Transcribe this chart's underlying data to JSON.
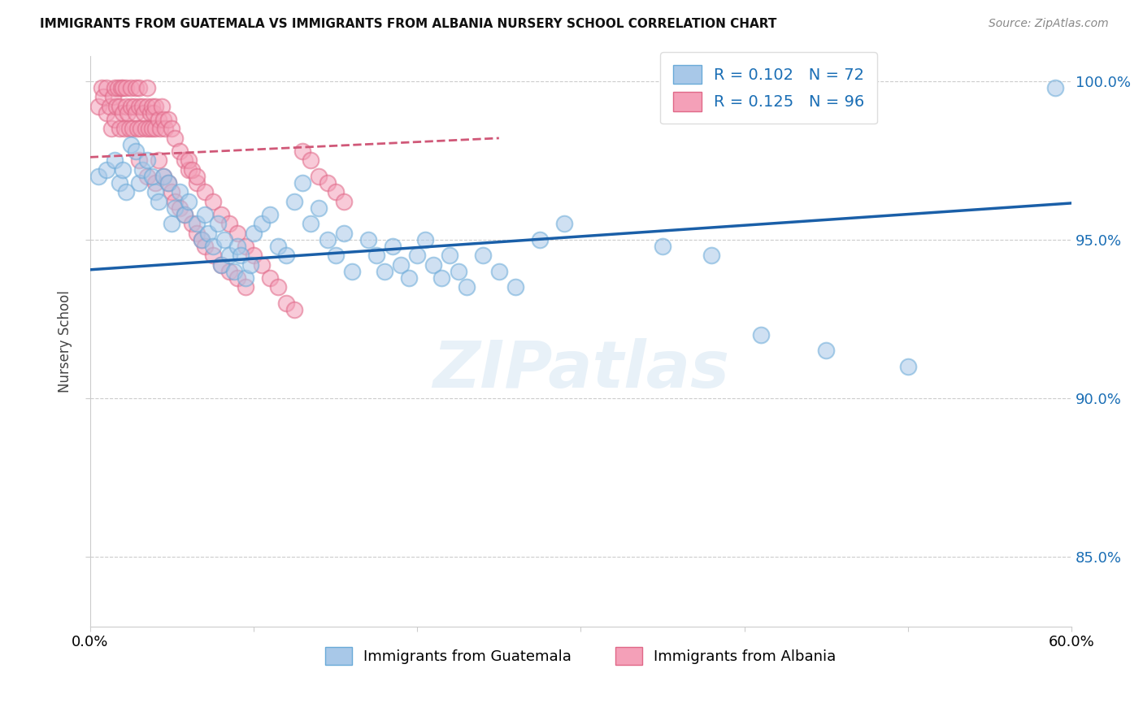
{
  "title": "IMMIGRANTS FROM GUATEMALA VS IMMIGRANTS FROM ALBANIA NURSERY SCHOOL CORRELATION CHART",
  "source": "Source: ZipAtlas.com",
  "ylabel": "Nursery School",
  "xmin": 0.0,
  "xmax": 0.6,
  "ymin": 0.828,
  "ymax": 1.008,
  "yticks": [
    0.85,
    0.9,
    0.95,
    1.0
  ],
  "ytick_labels": [
    "85.0%",
    "90.0%",
    "95.0%",
    "100.0%"
  ],
  "xticks": [
    0.0,
    0.1,
    0.2,
    0.3,
    0.4,
    0.5,
    0.6
  ],
  "guatemala_color": "#a8c8e8",
  "albania_color": "#f4a0b8",
  "guatemala_edge": "#6aaad8",
  "albania_edge": "#e06888",
  "trend_blue": "#1a5fa8",
  "trend_pink": "#d05878",
  "watermark": "ZIPatlas",
  "guatemala_x": [
    0.005,
    0.01,
    0.015,
    0.018,
    0.02,
    0.022,
    0.025,
    0.028,
    0.03,
    0.032,
    0.035,
    0.038,
    0.04,
    0.042,
    0.045,
    0.048,
    0.05,
    0.052,
    0.055,
    0.058,
    0.06,
    0.065,
    0.068,
    0.07,
    0.072,
    0.075,
    0.078,
    0.08,
    0.082,
    0.085,
    0.088,
    0.09,
    0.092,
    0.095,
    0.098,
    0.1,
    0.105,
    0.11,
    0.115,
    0.12,
    0.125,
    0.13,
    0.135,
    0.14,
    0.145,
    0.15,
    0.155,
    0.16,
    0.17,
    0.175,
    0.18,
    0.185,
    0.19,
    0.195,
    0.2,
    0.205,
    0.21,
    0.215,
    0.22,
    0.225,
    0.23,
    0.24,
    0.25,
    0.26,
    0.275,
    0.29,
    0.35,
    0.38,
    0.41,
    0.45,
    0.5,
    0.59
  ],
  "guatemala_y": [
    0.97,
    0.972,
    0.975,
    0.968,
    0.972,
    0.965,
    0.98,
    0.978,
    0.968,
    0.972,
    0.975,
    0.97,
    0.965,
    0.962,
    0.97,
    0.968,
    0.955,
    0.96,
    0.965,
    0.958,
    0.962,
    0.955,
    0.95,
    0.958,
    0.952,
    0.948,
    0.955,
    0.942,
    0.95,
    0.945,
    0.94,
    0.948,
    0.945,
    0.938,
    0.942,
    0.952,
    0.955,
    0.958,
    0.948,
    0.945,
    0.962,
    0.968,
    0.955,
    0.96,
    0.95,
    0.945,
    0.952,
    0.94,
    0.95,
    0.945,
    0.94,
    0.948,
    0.942,
    0.938,
    0.945,
    0.95,
    0.942,
    0.938,
    0.945,
    0.94,
    0.935,
    0.945,
    0.94,
    0.935,
    0.95,
    0.955,
    0.948,
    0.945,
    0.92,
    0.915,
    0.91,
    0.998
  ],
  "albania_x": [
    0.005,
    0.007,
    0.008,
    0.01,
    0.01,
    0.012,
    0.013,
    0.014,
    0.015,
    0.015,
    0.016,
    0.017,
    0.018,
    0.018,
    0.019,
    0.02,
    0.02,
    0.021,
    0.022,
    0.022,
    0.023,
    0.024,
    0.025,
    0.025,
    0.026,
    0.027,
    0.028,
    0.028,
    0.029,
    0.03,
    0.03,
    0.031,
    0.032,
    0.033,
    0.034,
    0.035,
    0.035,
    0.036,
    0.037,
    0.038,
    0.038,
    0.039,
    0.04,
    0.04,
    0.042,
    0.043,
    0.044,
    0.045,
    0.046,
    0.048,
    0.05,
    0.052,
    0.055,
    0.058,
    0.06,
    0.065,
    0.07,
    0.075,
    0.08,
    0.085,
    0.09,
    0.095,
    0.1,
    0.105,
    0.11,
    0.115,
    0.12,
    0.125,
    0.13,
    0.135,
    0.14,
    0.145,
    0.15,
    0.155,
    0.06,
    0.062,
    0.065,
    0.03,
    0.035,
    0.04,
    0.042,
    0.045,
    0.048,
    0.05,
    0.052,
    0.055,
    0.058,
    0.062,
    0.065,
    0.068,
    0.07,
    0.075,
    0.08,
    0.085,
    0.09,
    0.095
  ],
  "albania_y": [
    0.992,
    0.998,
    0.995,
    0.99,
    0.998,
    0.992,
    0.985,
    0.995,
    0.988,
    0.998,
    0.992,
    0.998,
    0.985,
    0.992,
    0.998,
    0.99,
    0.998,
    0.985,
    0.992,
    0.998,
    0.99,
    0.985,
    0.992,
    0.998,
    0.985,
    0.992,
    0.99,
    0.998,
    0.985,
    0.992,
    0.998,
    0.985,
    0.992,
    0.99,
    0.985,
    0.992,
    0.998,
    0.985,
    0.99,
    0.985,
    0.992,
    0.99,
    0.985,
    0.992,
    0.988,
    0.985,
    0.992,
    0.988,
    0.985,
    0.988,
    0.985,
    0.982,
    0.978,
    0.975,
    0.972,
    0.968,
    0.965,
    0.962,
    0.958,
    0.955,
    0.952,
    0.948,
    0.945,
    0.942,
    0.938,
    0.935,
    0.93,
    0.928,
    0.978,
    0.975,
    0.97,
    0.968,
    0.965,
    0.962,
    0.975,
    0.972,
    0.97,
    0.975,
    0.97,
    0.968,
    0.975,
    0.97,
    0.968,
    0.965,
    0.962,
    0.96,
    0.958,
    0.955,
    0.952,
    0.95,
    0.948,
    0.945,
    0.942,
    0.94,
    0.938,
    0.935
  ],
  "blue_trend_x0": 0.0,
  "blue_trend_y0": 0.9405,
  "blue_trend_x1": 0.6,
  "blue_trend_y1": 0.9615,
  "pink_trend_x0": 0.0,
  "pink_trend_y0": 0.976,
  "pink_trend_x1": 0.25,
  "pink_trend_y1": 0.982
}
